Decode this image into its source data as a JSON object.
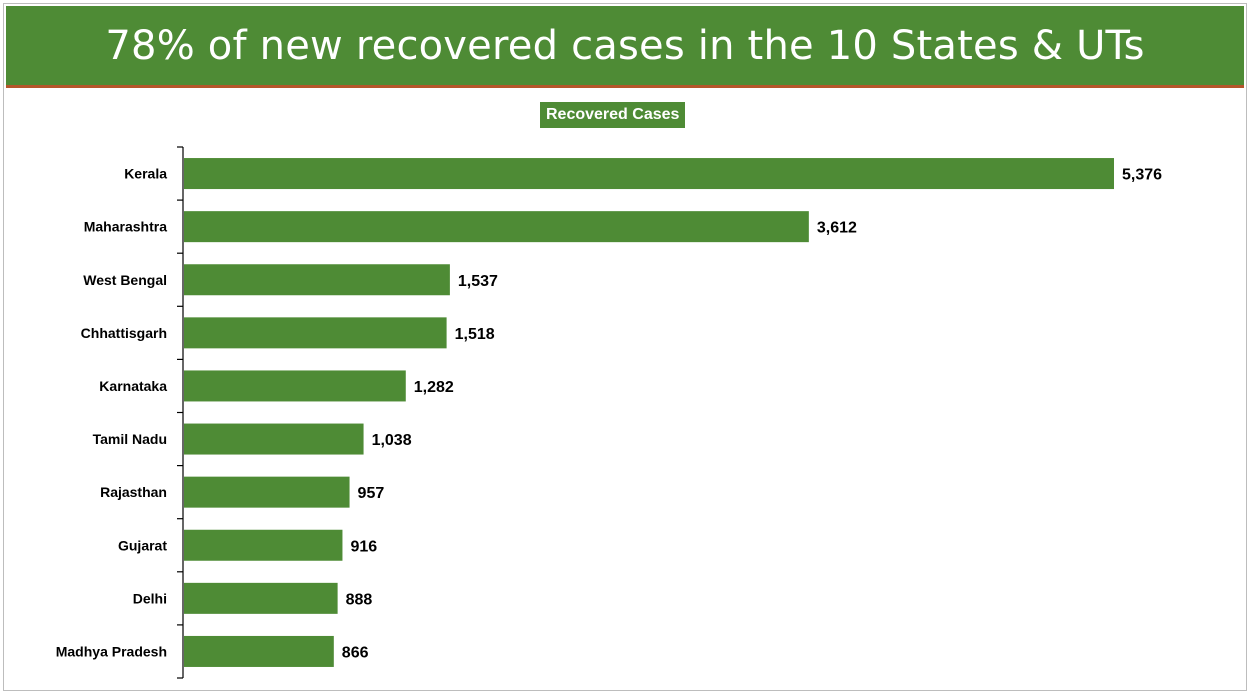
{
  "banner": {
    "title": "78% of new recovered cases in the 10 States & UTs"
  },
  "colors": {
    "banner": "#4e8b35",
    "bar": "#4e8b35",
    "banner_rule": "#b5562b",
    "text": "#000000",
    "axis": "#000000"
  },
  "chart_data": {
    "type": "bar",
    "orientation": "horizontal",
    "legend": "Recovered Cases",
    "legend_position": "top-center",
    "grid": false,
    "data_labels": true,
    "categories": [
      "Kerala",
      "Maharashtra",
      "West Bengal",
      "Chhattisgarh",
      "Karnataka",
      "Tamil Nadu",
      "Rajasthan",
      "Gujarat",
      "Delhi",
      "Madhya Pradesh"
    ],
    "series": [
      {
        "name": "Recovered Cases",
        "values": [
          5376,
          3612,
          1537,
          1518,
          1282,
          1038,
          957,
          916,
          888,
          866
        ],
        "labels": [
          "5,376",
          "3,612",
          "1,537",
          "1,518",
          "1,282",
          "1,038",
          "957",
          "916",
          "888",
          "866"
        ]
      }
    ],
    "xlim": [
      0,
      5376
    ]
  }
}
